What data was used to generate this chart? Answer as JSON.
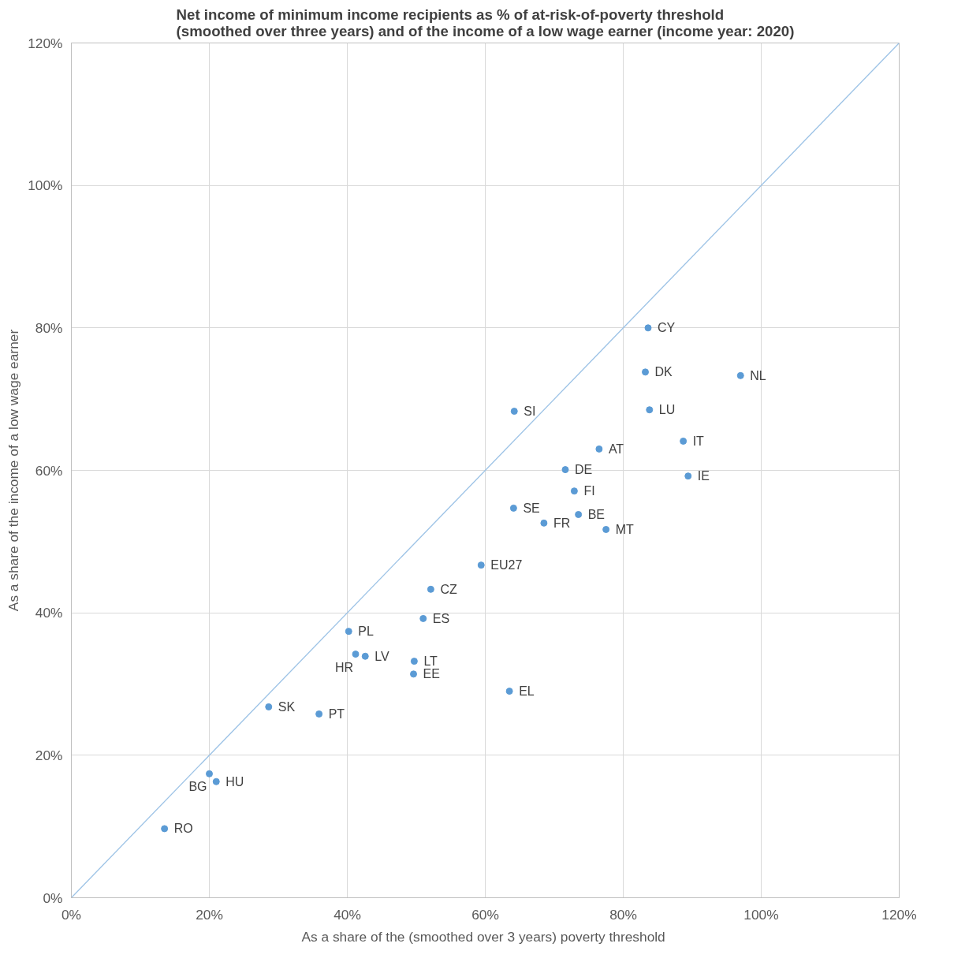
{
  "chart_data": {
    "type": "scatter",
    "title": "Net income of minimum income recipients as % of at-risk-of-poverty threshold\n(smoothed over three years) and of the income of a low wage earner (income year: 2020)",
    "xlabel": "As a share of the (smoothed  over 3 years) poverty threshold",
    "ylabel": "As a share of the income of a low wage earner",
    "xlim": [
      0,
      120
    ],
    "ylim": [
      0,
      120
    ],
    "xticks": [
      {
        "value": 0,
        "label": "0%"
      },
      {
        "value": 20,
        "label": "20%"
      },
      {
        "value": 40,
        "label": "40%"
      },
      {
        "value": 60,
        "label": "60%"
      },
      {
        "value": 80,
        "label": "80%"
      },
      {
        "value": 100,
        "label": "100%"
      },
      {
        "value": 120,
        "label": "120%"
      }
    ],
    "yticks": [
      {
        "value": 0,
        "label": "0%"
      },
      {
        "value": 20,
        "label": "20%"
      },
      {
        "value": 40,
        "label": "40%"
      },
      {
        "value": 60,
        "label": "60%"
      },
      {
        "value": 80,
        "label": "80%"
      },
      {
        "value": 100,
        "label": "100%"
      },
      {
        "value": 120,
        "label": "120%"
      }
    ],
    "grid": true,
    "series": [
      {
        "type": "line",
        "color": "#9dc3e6",
        "x": [
          0,
          120
        ],
        "values": [
          0,
          120
        ]
      },
      {
        "marker": "circle",
        "color": "#5b9bd5",
        "x": [
          83.6,
          83.2,
          97.0,
          83.8,
          64.2,
          88.7,
          76.5,
          71.6,
          89.4,
          72.9,
          64.1,
          73.5,
          68.5,
          77.5,
          59.4,
          52.1,
          51.0,
          40.2,
          41.2,
          42.6,
          49.7,
          49.6,
          63.5,
          28.6,
          35.9,
          20.0,
          21.0,
          13.5
        ],
        "values": [
          80.0,
          73.8,
          73.3,
          68.5,
          68.3,
          64.1,
          63.0,
          60.1,
          59.2,
          57.1,
          54.7,
          53.8,
          52.6,
          51.7,
          46.7,
          43.3,
          39.2,
          37.4,
          34.2,
          33.9,
          33.2,
          31.4,
          29.0,
          26.8,
          25.8,
          17.4,
          16.3,
          9.7
        ]
      }
    ],
    "annotations": [
      {
        "text": "CY",
        "x": 83.6,
        "y": 80.0
      },
      {
        "text": "DK",
        "x": 83.2,
        "y": 73.8
      },
      {
        "text": "NL",
        "x": 97.0,
        "y": 73.3
      },
      {
        "text": "LU",
        "x": 83.8,
        "y": 68.5
      },
      {
        "text": "SI",
        "x": 64.2,
        "y": 68.3
      },
      {
        "text": "IT",
        "x": 88.7,
        "y": 64.1
      },
      {
        "text": "AT",
        "x": 76.5,
        "y": 63.0
      },
      {
        "text": "DE",
        "x": 71.6,
        "y": 60.1
      },
      {
        "text": "IE",
        "x": 89.4,
        "y": 59.2
      },
      {
        "text": "FI",
        "x": 72.9,
        "y": 57.1
      },
      {
        "text": "SE",
        "x": 64.1,
        "y": 54.7
      },
      {
        "text": "BE",
        "x": 73.5,
        "y": 53.8
      },
      {
        "text": "FR",
        "x": 68.5,
        "y": 52.6
      },
      {
        "text": "MT",
        "x": 77.5,
        "y": 51.7
      },
      {
        "text": "EU27",
        "x": 59.4,
        "y": 46.7
      },
      {
        "text": "CZ",
        "x": 52.1,
        "y": 43.3
      },
      {
        "text": "ES",
        "x": 51.0,
        "y": 39.2
      },
      {
        "text": "PL",
        "x": 40.2,
        "y": 37.4
      },
      {
        "text": "HR",
        "x": 41.2,
        "y": 34.2
      },
      {
        "text": "LV",
        "x": 42.6,
        "y": 33.9
      },
      {
        "text": "LT",
        "x": 49.7,
        "y": 33.2
      },
      {
        "text": "EE",
        "x": 49.6,
        "y": 31.4
      },
      {
        "text": "EL",
        "x": 63.5,
        "y": 29.0
      },
      {
        "text": "SK",
        "x": 28.6,
        "y": 26.8
      },
      {
        "text": "PT",
        "x": 35.9,
        "y": 25.8
      },
      {
        "text": "BG",
        "x": 20.0,
        "y": 17.4
      },
      {
        "text": "HU",
        "x": 21.0,
        "y": 16.3
      },
      {
        "text": "RO",
        "x": 13.5,
        "y": 9.7
      }
    ]
  }
}
